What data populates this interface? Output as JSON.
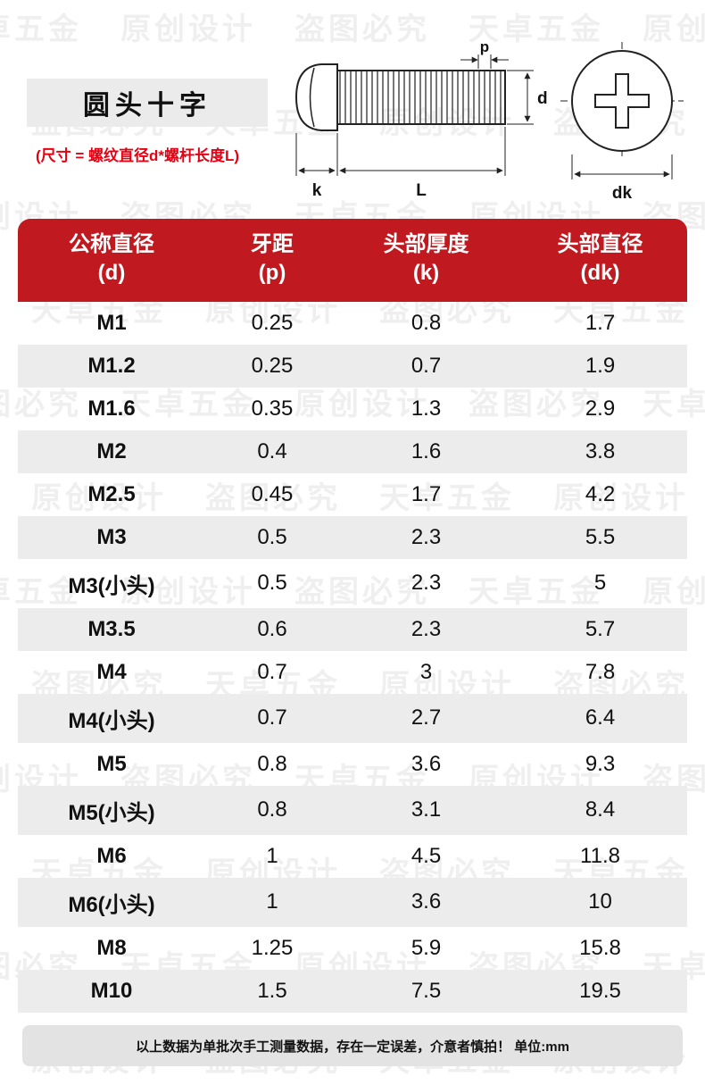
{
  "page": {
    "title": "圆头十字",
    "size_note": "(尺寸 = 螺纹直径d*螺杆长度L)",
    "footer_note": "以上数据为单批次手工测量数据，存在一定误差，介意者慎拍！ 单位:mm"
  },
  "diagram": {
    "labels": {
      "p": "p",
      "d": "d",
      "k": "k",
      "L": "L",
      "dk": "dk"
    }
  },
  "watermarks": [
    "天卓五金",
    "原创设计",
    "盗图必究"
  ],
  "colors": {
    "header_red": "#c01a20",
    "note_red": "#e50012",
    "row_alt": "#ececec",
    "panel_gray": "#ebebeb",
    "footer_gray": "#e3e3e3",
    "watermark_gray": "#efefef"
  },
  "table": {
    "columns": [
      {
        "label": "公称直径",
        "sub": "(d)"
      },
      {
        "label": "牙距",
        "sub": "(p)"
      },
      {
        "label": "头部厚度",
        "sub": "(k)"
      },
      {
        "label": "头部直径",
        "sub": "(dk)"
      }
    ],
    "rows": [
      {
        "cells": [
          "M1",
          "0.25",
          "0.8",
          "1.7"
        ]
      },
      {
        "cells": [
          "M1.2",
          "0.25",
          "0.7",
          "1.9"
        ]
      },
      {
        "cells": [
          "M1.6",
          "0.35",
          "1.3",
          "2.9"
        ]
      },
      {
        "cells": [
          "M2",
          "0.4",
          "1.6",
          "3.8"
        ]
      },
      {
        "cells": [
          "M2.5",
          "0.45",
          "1.7",
          "4.2"
        ]
      },
      {
        "cells": [
          "M3",
          "0.5",
          "2.3",
          "5.5"
        ]
      },
      {
        "cells": [
          "M3(小头)",
          "0.5",
          "2.3",
          "5"
        ]
      },
      {
        "cells": [
          "M3.5",
          "0.6",
          "2.3",
          "5.7"
        ]
      },
      {
        "cells": [
          "M4",
          "0.7",
          "3",
          "7.8"
        ]
      },
      {
        "cells": [
          "M4(小头)",
          "0.7",
          "2.7",
          "6.4"
        ]
      },
      {
        "cells": [
          "M5",
          "0.8",
          "3.6",
          "9.3"
        ]
      },
      {
        "cells": [
          "M5(小头)",
          "0.8",
          "3.1",
          "8.4"
        ]
      },
      {
        "cells": [
          "M6",
          "1",
          "4.5",
          "11.8"
        ]
      },
      {
        "cells": [
          "M6(小头)",
          "1",
          "3.6",
          "10"
        ]
      },
      {
        "cells": [
          "M8",
          "1.25",
          "5.9",
          "15.8"
        ]
      },
      {
        "cells": [
          "M10",
          "1.5",
          "7.5",
          "19.5"
        ]
      }
    ]
  }
}
